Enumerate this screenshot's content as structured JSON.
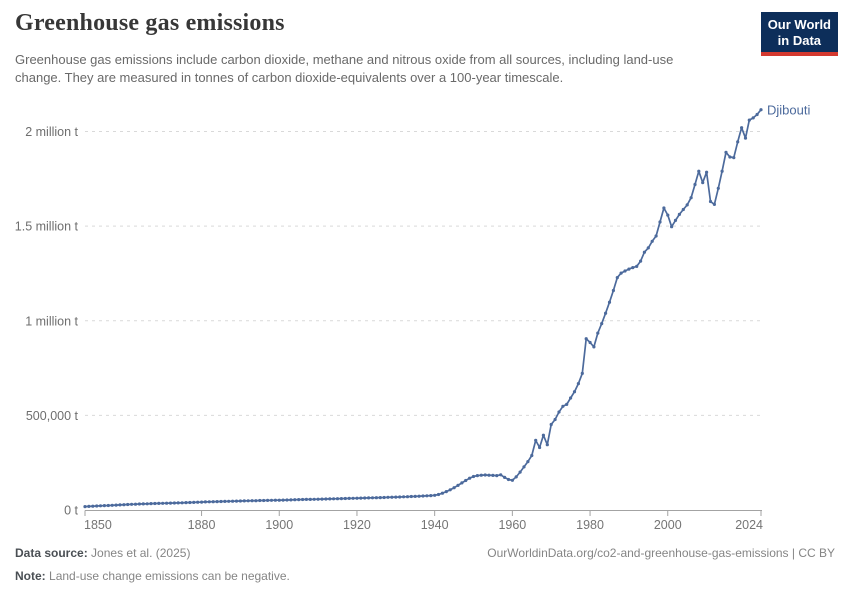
{
  "header": {
    "title": "Greenhouse gas emissions",
    "subtitle": "Greenhouse gas emissions include carbon dioxide, methane and nitrous oxide from all sources, including land-use change. They are measured in tonnes of carbon dioxide-equivalents over a 100-year timescale.",
    "logo": {
      "line1": "Our World",
      "line2": "in Data",
      "bg_color": "#0d2e5a",
      "accent_color": "#d4392f"
    }
  },
  "chart_data": {
    "type": "line",
    "title": "Greenhouse gas emissions",
    "unit": "t",
    "grid": "dashed-horizontal",
    "legend_position": "end-of-line",
    "x_axis": {
      "min": 1850,
      "max": 2024,
      "ticks": [
        1850,
        1880,
        1900,
        1920,
        1940,
        1960,
        1980,
        2000,
        2024
      ]
    },
    "y_axis": {
      "min": 0,
      "max": 2000000,
      "ticks": [
        {
          "value": 0,
          "label": "0 t"
        },
        {
          "value": 500000,
          "label": "500,000 t"
        },
        {
          "value": 1000000,
          "label": "1 million t"
        },
        {
          "value": 1500000,
          "label": "1.5 million t"
        },
        {
          "value": 2000000,
          "label": "2 million t"
        }
      ]
    },
    "series": [
      {
        "name": "Djibouti",
        "color": "#4c6a9c",
        "years": [
          1850,
          1851,
          1852,
          1853,
          1854,
          1855,
          1856,
          1857,
          1858,
          1859,
          1860,
          1861,
          1862,
          1863,
          1864,
          1865,
          1866,
          1867,
          1868,
          1869,
          1870,
          1871,
          1872,
          1873,
          1874,
          1875,
          1876,
          1877,
          1878,
          1879,
          1880,
          1881,
          1882,
          1883,
          1884,
          1885,
          1886,
          1887,
          1888,
          1889,
          1890,
          1891,
          1892,
          1893,
          1894,
          1895,
          1896,
          1897,
          1898,
          1899,
          1900,
          1901,
          1902,
          1903,
          1904,
          1905,
          1906,
          1907,
          1908,
          1909,
          1910,
          1911,
          1912,
          1913,
          1914,
          1915,
          1916,
          1917,
          1918,
          1919,
          1920,
          1921,
          1922,
          1923,
          1924,
          1925,
          1926,
          1927,
          1928,
          1929,
          1930,
          1931,
          1932,
          1933,
          1934,
          1935,
          1936,
          1937,
          1938,
          1939,
          1940,
          1941,
          1942,
          1943,
          1944,
          1945,
          1946,
          1947,
          1948,
          1949,
          1950,
          1951,
          1952,
          1953,
          1954,
          1955,
          1956,
          1957,
          1958,
          1959,
          1960,
          1961,
          1962,
          1963,
          1964,
          1965,
          1966,
          1967,
          1968,
          1969,
          1970,
          1971,
          1972,
          1973,
          1974,
          1975,
          1976,
          1977,
          1978,
          1979,
          1980,
          1981,
          1982,
          1983,
          1984,
          1985,
          1986,
          1987,
          1988,
          1989,
          1990,
          1991,
          1992,
          1993,
          1994,
          1995,
          1996,
          1997,
          1998,
          1999,
          2000,
          2001,
          2002,
          2003,
          2004,
          2005,
          2006,
          2007,
          2008,
          2009,
          2010,
          2011,
          2012,
          2013,
          2014,
          2015,
          2016,
          2017,
          2018,
          2019,
          2020,
          2021,
          2022,
          2023,
          2024
        ],
        "values": [
          18000,
          19000,
          20000,
          21000,
          22000,
          23000,
          24000,
          25000,
          26000,
          27000,
          28000,
          29000,
          30000,
          30800,
          31500,
          32200,
          33000,
          33600,
          34200,
          34700,
          35200,
          35800,
          36400,
          37000,
          37500,
          38200,
          39000,
          39800,
          40400,
          41200,
          42000,
          42600,
          43200,
          43800,
          44400,
          45000,
          45500,
          46000,
          46500,
          47000,
          47500,
          48000,
          48400,
          48900,
          49400,
          50000,
          50400,
          50800,
          51200,
          51600,
          52000,
          52500,
          53000,
          53500,
          54200,
          54800,
          55300,
          55800,
          56200,
          56600,
          57000,
          57500,
          58000,
          58600,
          59200,
          59800,
          60300,
          60800,
          61300,
          61700,
          62200,
          62800,
          63400,
          64000,
          64500,
          65100,
          65700,
          66300,
          66900,
          67500,
          68100,
          68800,
          69500,
          70300,
          71100,
          72000,
          73000,
          74000,
          75000,
          76000,
          77500,
          82000,
          89000,
          97000,
          107000,
          118000,
          130000,
          143000,
          156000,
          168000,
          177000,
          182000,
          184000,
          185000,
          184000,
          183000,
          182000,
          186000,
          172000,
          161000,
          157000,
          175000,
          200000,
          228000,
          256000,
          288000,
          368000,
          330000,
          395000,
          345000,
          452000,
          478000,
          518000,
          548000,
          558000,
          592000,
          625000,
          668000,
          722000,
          905000,
          885000,
          862000,
          935000,
          985000,
          1040000,
          1098000,
          1160000,
          1228000,
          1252000,
          1263000,
          1273000,
          1281000,
          1287000,
          1315000,
          1362000,
          1385000,
          1420000,
          1448000,
          1522000,
          1596000,
          1558000,
          1497000,
          1530000,
          1562000,
          1588000,
          1612000,
          1650000,
          1720000,
          1790000,
          1730000,
          1785000,
          1630000,
          1615000,
          1700000,
          1790000,
          1890000,
          1865000,
          1862000,
          1945000,
          2020000,
          1965000,
          2060000,
          2072000,
          2090000,
          2115000
        ]
      }
    ]
  },
  "footer": {
    "data_source_label": "Data source:",
    "data_source_value": "Jones et al. (2025)",
    "link": "OurWorldinData.org/co2-and-greenhouse-gas-emissions | CC BY",
    "note_label": "Note:",
    "note_value": "Land-use change emissions can be negative."
  },
  "colors": {
    "line": "#4c6a9c",
    "gridline": "#d9d9d9",
    "axis": "#a3a3a3",
    "y_tick_label": "#6e6e6e",
    "x_tick_label": "#757575"
  }
}
